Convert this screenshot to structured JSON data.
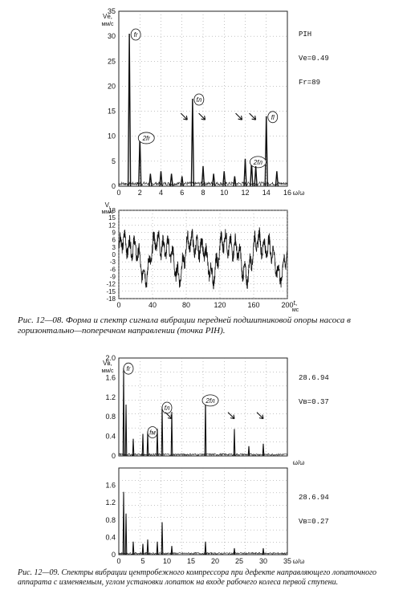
{
  "figure1": {
    "caption": "Рис. 12—08. Форма и спектр сигнала вибрации передней подшипниковой опоры насоса в горизонтально—поперечном направлении (точка PIH).",
    "spectrum": {
      "chart_data": {
        "type": "line",
        "ylabel": "Vе, мм/с",
        "xlabel": "ω/ω",
        "xlim": [
          0,
          16
        ],
        "ylim": [
          0,
          35
        ],
        "x_ticks": [
          "0",
          "2",
          "4",
          "6",
          "8",
          "10",
          "12",
          "14",
          "16"
        ],
        "y_ticks": [
          "0",
          "5",
          "10",
          "15",
          "20",
          "25",
          "30",
          "35"
        ],
        "peaks": [
          {
            "x": 1.0,
            "y": 30.5,
            "label": "fr"
          },
          {
            "x": 2.0,
            "y": 9.8,
            "label": "2fr"
          },
          {
            "x": 7.0,
            "y": 17.5,
            "label": "fл"
          },
          {
            "x": 14.0,
            "y": 14.0,
            "label": "fl"
          },
          {
            "x": 12.6,
            "y": 5.0,
            "label": "2fл"
          },
          {
            "x": 3.0,
            "y": 2.5
          },
          {
            "x": 4.0,
            "y": 3.0
          },
          {
            "x": 5.0,
            "y": 2.5
          },
          {
            "x": 6.0,
            "y": 2.0
          },
          {
            "x": 8.0,
            "y": 4.0
          },
          {
            "x": 9.0,
            "y": 2.5
          },
          {
            "x": 10.0,
            "y": 3.0
          },
          {
            "x": 11.0,
            "y": 2.0
          },
          {
            "x": 12.0,
            "y": 5.5
          },
          {
            "x": 13.0,
            "y": 4.0
          },
          {
            "x": 15.0,
            "y": 3.0
          }
        ],
        "arrows_at_x": [
          6.5,
          8.2,
          11.7,
          13.0
        ],
        "corner_text": [
          "PIH",
          "Ve=0.49",
          "Fr=89"
        ]
      }
    },
    "waveform": {
      "chart_data": {
        "type": "line",
        "ylabel": "V, мм/с",
        "xlabel": "t, мс",
        "xlim": [
          0,
          200
        ],
        "ylim": [
          -18,
          18
        ],
        "x_ticks": [
          "0",
          "40",
          "80",
          "120",
          "160",
          "200"
        ],
        "y_ticks": [
          "18",
          "15",
          "12",
          "9",
          "6",
          "3",
          "0",
          "-3",
          "-6",
          "-9",
          "-12",
          "-15",
          "-18"
        ]
      }
    }
  },
  "figure2": {
    "caption": "Рис. 12—09. Спектры вибрации центробежного компрессора при дефекте направляющего лопаточного аппарата с изменяемым, углом установки лопаток на входе рабочего колеса первой ступени.",
    "spectrum_top": {
      "chart_data": {
        "type": "bar",
        "ylabel": "Vв, мм/с",
        "xlabel": "ω/ω",
        "xlim": [
          0,
          35
        ],
        "ylim": [
          0,
          2.0
        ],
        "y_ticks": [
          "2.0",
          "1.6",
          "1.2",
          "0.8",
          "0.4",
          "0"
        ],
        "peaks": [
          {
            "x": 1.0,
            "y": 1.8,
            "label": "fr"
          },
          {
            "x": 1.5,
            "y": 1.05
          },
          {
            "x": 3.0,
            "y": 0.35
          },
          {
            "x": 5.0,
            "y": 0.45
          },
          {
            "x": 6.0,
            "y": 0.5,
            "label": "fм"
          },
          {
            "x": 8.0,
            "y": 0.55
          },
          {
            "x": 9.0,
            "y": 1.0,
            "label": "fл"
          },
          {
            "x": 11.0,
            "y": 0.9
          },
          {
            "x": 18.0,
            "y": 1.15,
            "label": "2fл"
          },
          {
            "x": 24.0,
            "y": 0.55
          },
          {
            "x": 27.0,
            "y": 0.2
          },
          {
            "x": 30.0,
            "y": 0.25
          }
        ],
        "arrows_at_x": [
          11.0,
          24.0,
          30.0
        ],
        "corner_text": [
          "28.6.94",
          "Vв=0.37"
        ]
      }
    },
    "spectrum_bottom": {
      "chart_data": {
        "type": "bar",
        "ylabel": "",
        "xlabel": "ω/ω",
        "xlim": [
          0,
          35
        ],
        "ylim": [
          0,
          2.0
        ],
        "x_ticks": [
          "0",
          "5",
          "10",
          "15",
          "20",
          "25",
          "30",
          "35"
        ],
        "y_ticks": [
          "1.6",
          "1.2",
          "0.8",
          "0.4",
          "0"
        ],
        "peaks": [
          {
            "x": 1.0,
            "y": 1.45
          },
          {
            "x": 1.5,
            "y": 0.95
          },
          {
            "x": 3.0,
            "y": 0.3
          },
          {
            "x": 5.0,
            "y": 0.25
          },
          {
            "x": 6.0,
            "y": 0.35
          },
          {
            "x": 8.0,
            "y": 0.3
          },
          {
            "x": 9.0,
            "y": 0.75
          },
          {
            "x": 11.0,
            "y": 0.2
          },
          {
            "x": 18.0,
            "y": 0.3
          },
          {
            "x": 24.0,
            "y": 0.15
          },
          {
            "x": 30.0,
            "y": 0.15
          }
        ],
        "corner_text": [
          "28.6.94",
          "Vв=0.27"
        ]
      }
    }
  }
}
